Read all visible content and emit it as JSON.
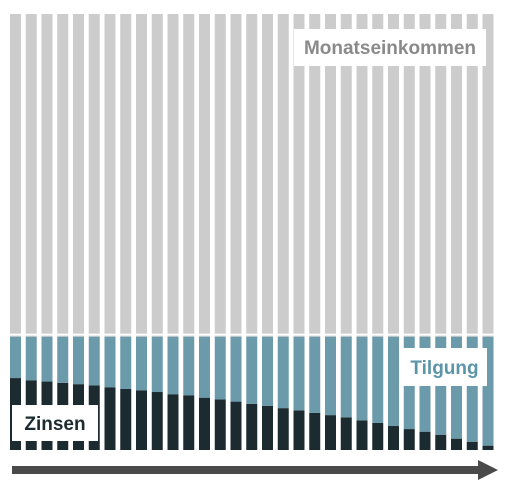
{
  "chart_data": {
    "type": "bar",
    "stacked": true,
    "title": "",
    "xlabel": "",
    "ylabel": "",
    "grid": false,
    "n_bars": 31,
    "ylim": [
      0,
      100
    ],
    "series": [
      {
        "name": "Zinsen",
        "color": "#1c2b30",
        "values": [
          16.5,
          16.0,
          15.7,
          15.4,
          15.1,
          14.8,
          14.4,
          14.0,
          13.7,
          13.3,
          12.8,
          12.5,
          12.0,
          11.6,
          11.1,
          10.6,
          10.1,
          9.6,
          9.1,
          8.5,
          8.0,
          7.5,
          6.8,
          6.2,
          5.5,
          4.8,
          4.2,
          3.5,
          2.6,
          1.9,
          1.0
        ]
      },
      {
        "name": "Tilgung",
        "color": "#6b9aab",
        "values": [
          9.5,
          10.0,
          10.3,
          10.6,
          10.9,
          11.2,
          11.6,
          12.0,
          12.3,
          12.7,
          13.2,
          13.5,
          14.0,
          14.4,
          14.9,
          15.4,
          15.9,
          16.4,
          16.9,
          17.5,
          18.0,
          18.5,
          19.2,
          19.8,
          20.5,
          21.2,
          21.8,
          22.5,
          23.4,
          24.1,
          25.0
        ]
      },
      {
        "name": "Monatseinkommen",
        "color": "#cccccc",
        "values": [
          74,
          74,
          74,
          74,
          74,
          74,
          74,
          74,
          74,
          74,
          74,
          74,
          74,
          74,
          74,
          74,
          74,
          74,
          74,
          74,
          74,
          74,
          74,
          74,
          74,
          74,
          74,
          74,
          74,
          74,
          74
        ]
      }
    ],
    "annotations": {
      "monatseinkommen": "Monatseinkommen",
      "tilgung": "Tilgung",
      "zinsen": "Zinsen"
    },
    "axis_arrow_color": "#4a4a4a"
  }
}
